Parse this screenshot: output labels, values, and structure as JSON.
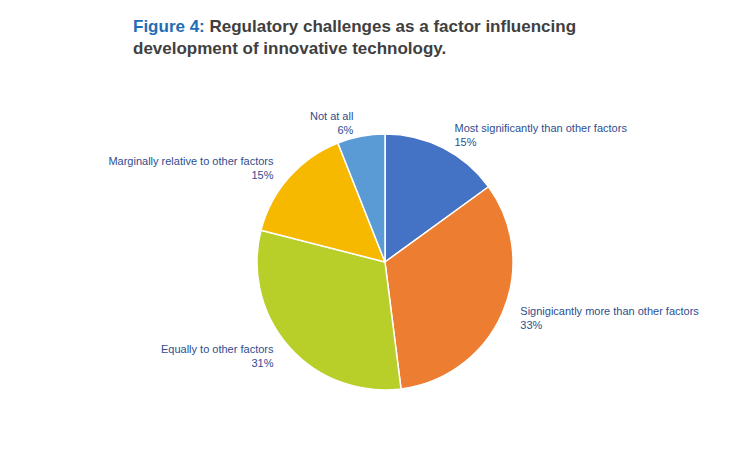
{
  "chart_data": {
    "type": "pie",
    "title": "Figure 4: Regulatory challenges as a factor influencing development of innovative technology.",
    "categories": [
      "Most significantly than other factors",
      "Signigicantly more than other factors",
      "Equally to other factors",
      "Marginally relative to other factors",
      "Not at all"
    ],
    "values": [
      15,
      33,
      31,
      15,
      6
    ],
    "value_labels": [
      "15%",
      "33%",
      "31%",
      "15%",
      "6%"
    ],
    "colors": [
      "#4472c4",
      "#ed7d31",
      "#b8cf2a",
      "#f7b900",
      "#5b9bd5"
    ],
    "data_labels": true
  }
}
